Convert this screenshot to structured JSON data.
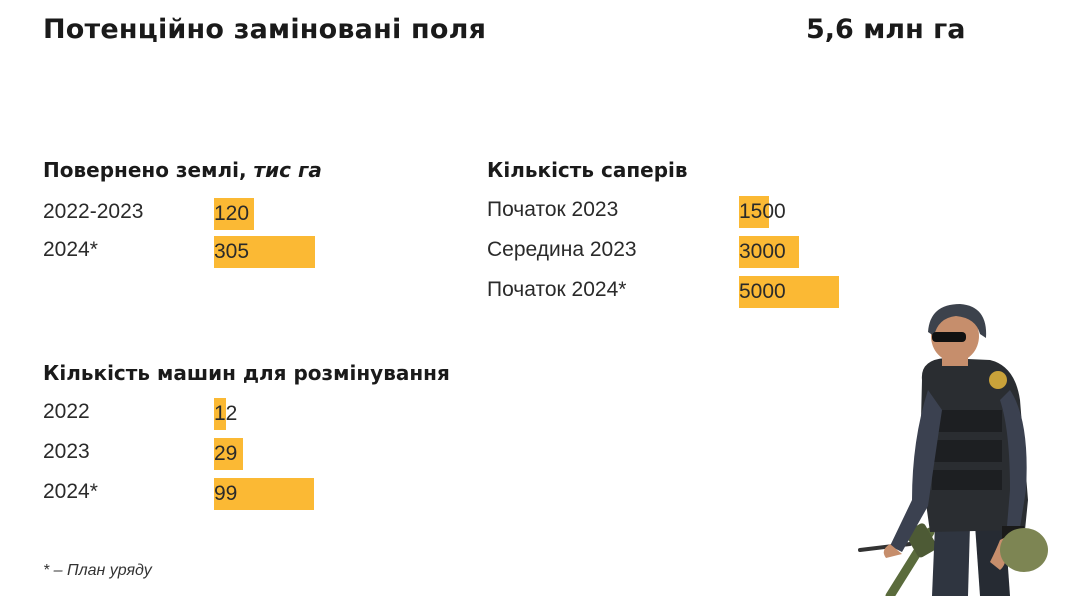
{
  "header": {
    "title": "Потенційно заміновані поля",
    "total": "5,6 млн га"
  },
  "footnote": "* – План уряду",
  "colors": {
    "bar": "#fbb934",
    "text": "#1a1a1a"
  },
  "image": {
    "subject": "deminer-with-metal-detector"
  },
  "chart_data": [
    {
      "type": "bar",
      "title": "Повернено землі,",
      "title_unit": "тис га",
      "categories": [
        "2022-2023",
        "2024*"
      ],
      "values": [
        120,
        305
      ],
      "value_labels": [
        "120",
        "305"
      ]
    },
    {
      "type": "bar",
      "title": "Кількість саперів",
      "categories": [
        "Початок 2023",
        "Середина 2023",
        "Початок 2024*"
      ],
      "values": [
        1500,
        3000,
        5000
      ],
      "value_labels": [
        "1500",
        "3000",
        "5000"
      ]
    },
    {
      "type": "bar",
      "title": "Кількість машин для розмінування",
      "categories": [
        "2022",
        "2023",
        "2024*"
      ],
      "values": [
        12,
        29,
        99
      ],
      "value_labels": [
        "12",
        "29",
        "99"
      ]
    }
  ]
}
